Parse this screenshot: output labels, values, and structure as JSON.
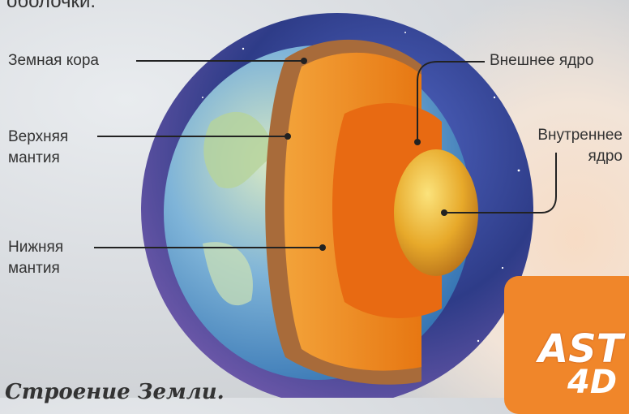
{
  "header_partial": "оболочки.",
  "caption": "Строение Земли.",
  "labels": {
    "crust": "Земная кора",
    "upper_mantle_line1": "Верхняя",
    "upper_mantle_line2": "мантия",
    "lower_mantle_line1": "Нижняя",
    "lower_mantle_line2": "мантия",
    "outer_core": "Внешнее ядро",
    "inner_core_line1": "Внутреннее",
    "inner_core_line2": "ядро"
  },
  "badge": {
    "text": "AST",
    "sub": "4D"
  },
  "colors": {
    "space": "#2f3f8e",
    "ocean": "#3c84c8",
    "land": "#b9cf9a",
    "crust": "#a86b3a",
    "mantle": "#f08a1c",
    "outer_core": "#e96a10",
    "inner_core": "#f3c23a",
    "badge": "#f0862a"
  }
}
